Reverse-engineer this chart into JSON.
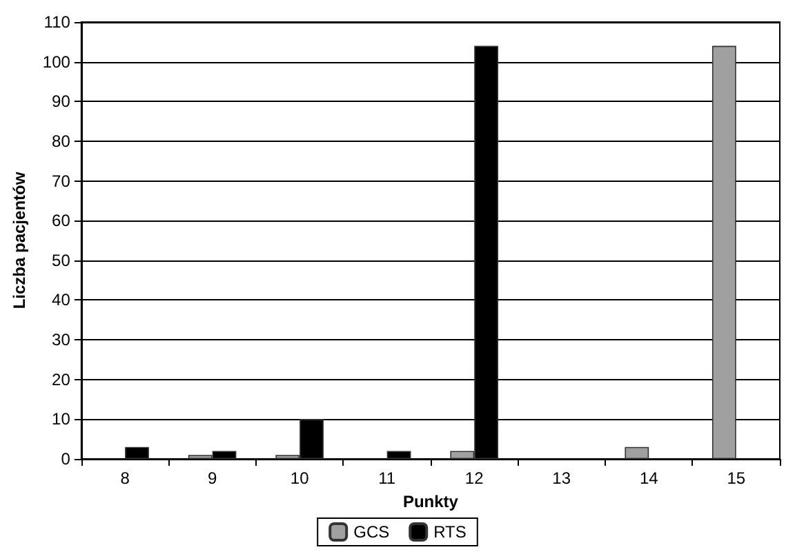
{
  "chart_data": {
    "type": "bar",
    "xlabel": "Punkty",
    "ylabel": "Liczba pacjentów",
    "categories": [
      "8",
      "9",
      "10",
      "11",
      "12",
      "13",
      "14",
      "15"
    ],
    "series": [
      {
        "name": "GCS",
        "color": "#a0a0a0",
        "values": [
          0,
          1,
          1,
          0,
          2,
          0,
          3,
          104
        ]
      },
      {
        "name": "RTS",
        "color": "#000000",
        "values": [
          3,
          2,
          10,
          2,
          104,
          0,
          0,
          0
        ]
      }
    ],
    "ylim": [
      0,
      110
    ],
    "yticks": [
      0,
      10,
      20,
      30,
      40,
      50,
      60,
      70,
      80,
      90,
      100,
      110
    ],
    "grid": "y",
    "legend": "bottom"
  }
}
